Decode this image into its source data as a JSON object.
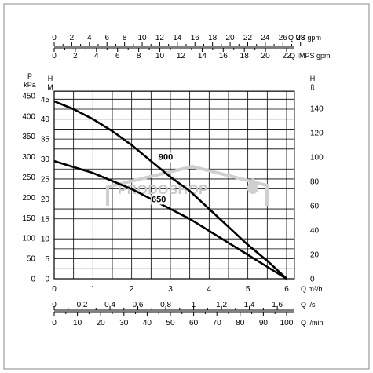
{
  "chart_data": {
    "type": "line",
    "x_axis": {
      "label": "Q m³/h",
      "range": [
        0,
        6.2
      ],
      "ticks": [
        0,
        1,
        2,
        3,
        4,
        5,
        6
      ],
      "tick_labels": [
        "0",
        "1",
        "2",
        "3",
        "4",
        "5",
        "6"
      ]
    },
    "y_axis_meters": {
      "label": "H M",
      "range": [
        0,
        47
      ],
      "ticks": [
        0,
        5,
        10,
        15,
        20,
        25,
        30,
        35,
        40,
        45
      ],
      "tick_labels": [
        "0",
        "5",
        "10",
        "15",
        "20",
        "25",
        "30",
        "35",
        "40",
        "45"
      ]
    },
    "y_axis_kpa": {
      "label": "P kPa",
      "ticks": [
        0,
        50,
        100,
        150,
        200,
        250,
        300,
        350,
        400,
        450
      ],
      "tick_labels": [
        "0",
        "50",
        "100",
        "150",
        "200",
        "250",
        "300",
        "350",
        "400",
        "450"
      ]
    },
    "y_axis_feet": {
      "label": "H ft",
      "ticks": [
        0,
        20,
        40,
        60,
        80,
        100,
        120,
        140
      ],
      "tick_labels": [
        "0",
        "20",
        "40",
        "60",
        "80",
        "100",
        "120",
        "140"
      ]
    },
    "top_axis_us_gpm": {
      "label": "Q US gpm",
      "ticks": [
        0,
        2,
        4,
        6,
        8,
        10,
        12,
        14,
        16,
        18,
        20,
        22,
        24,
        26,
        28
      ],
      "tick_labels": [
        "0",
        "2",
        "4",
        "6",
        "8",
        "10",
        "12",
        "14",
        "16",
        "18",
        "20",
        "22",
        "24",
        "26",
        "28"
      ]
    },
    "top_axis_imp_gpm": {
      "label": "Q IMPS gpm",
      "ticks": [
        0,
        2,
        4,
        6,
        8,
        10,
        12,
        14,
        16,
        18,
        20,
        22
      ],
      "tick_labels": [
        "0",
        "2",
        "4",
        "6",
        "8",
        "10",
        "12",
        "14",
        "16",
        "18",
        "20",
        "22"
      ]
    },
    "bottom_axis_ls": {
      "label": "Q l/s",
      "ticks": [
        0,
        0.2,
        0.4,
        0.6,
        0.8,
        1,
        1.2,
        1.4,
        1.6
      ],
      "tick_labels": [
        "0",
        "0,2",
        "0,4",
        "0,6",
        "0,8",
        "1",
        "1,2",
        "1,4",
        "1,6"
      ]
    },
    "bottom_axis_lmin": {
      "label": "Q l/min",
      "ticks": [
        0,
        10,
        20,
        30,
        40,
        50,
        60,
        70,
        80,
        90,
        100
      ],
      "tick_labels": [
        "0",
        "10",
        "20",
        "30",
        "40",
        "50",
        "60",
        "70",
        "80",
        "90",
        "100"
      ]
    },
    "series": [
      {
        "name": "900",
        "x": [
          0,
          0.5,
          1,
          1.5,
          2,
          2.5,
          3,
          3.5,
          4,
          4.5,
          5,
          5.5,
          6
        ],
        "y": [
          44.5,
          42.5,
          40,
          37,
          33.5,
          29.5,
          25.5,
          22,
          17.5,
          13,
          8.5,
          4.5,
          0
        ]
      },
      {
        "name": "650",
        "x": [
          0,
          0.5,
          1,
          1.5,
          2,
          2.5,
          3,
          3.5,
          4,
          4.5,
          5,
          5.5,
          6
        ],
        "y": [
          29.5,
          28,
          26.5,
          24.5,
          22.5,
          20,
          17.5,
          15,
          12,
          9,
          6,
          3,
          0
        ]
      }
    ],
    "grid": true,
    "watermark": "PRODOSHOP"
  }
}
